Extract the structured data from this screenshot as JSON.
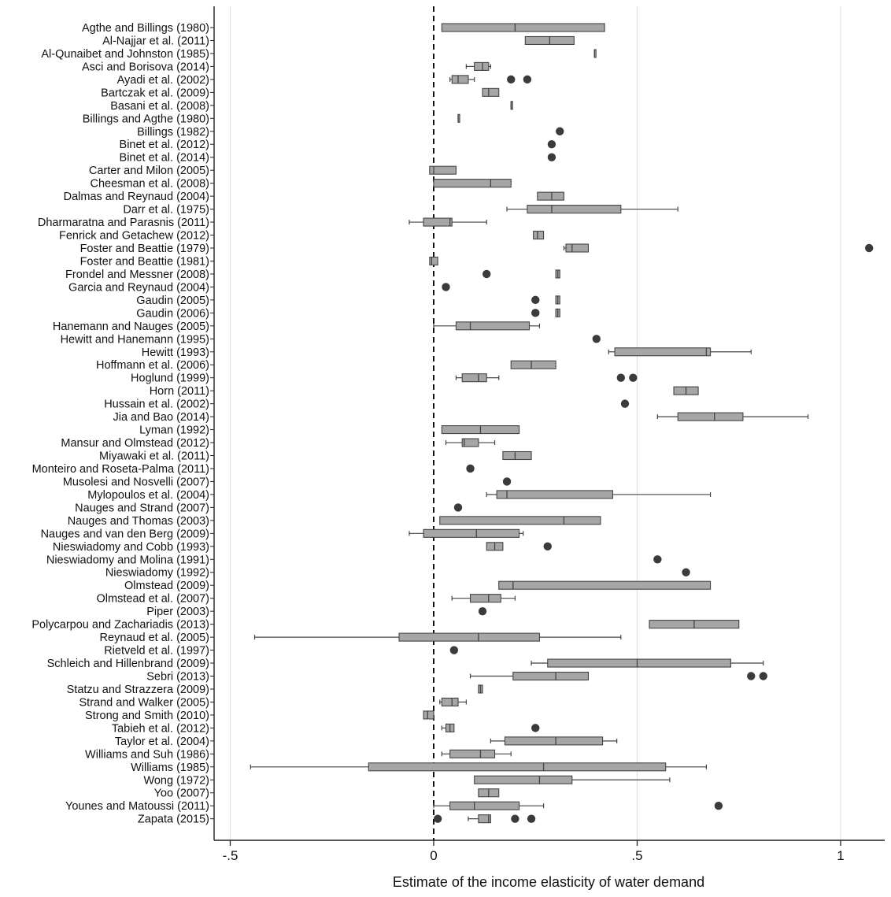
{
  "chart_data": {
    "type": "box",
    "title": "",
    "xlabel": "Estimate of the income elasticity of water demand",
    "ylabel": "",
    "xlim": [
      -0.5,
      1.1
    ],
    "xticks": [
      -0.5,
      0,
      0.5,
      1
    ],
    "xtick_labels": [
      "-.5",
      "0",
      ".5",
      "1"
    ],
    "grid": "vertical",
    "reference_line": 0,
    "colors": {
      "box": "#a6a6a6",
      "edge": "#444444",
      "outlier": "#3b3b3b",
      "grid": "#e2e2e2"
    },
    "studies": [
      {
        "name": "Agthe and Billings (1980)",
        "box": [
          0.02,
          0.2,
          0.42
        ]
      },
      {
        "name": "Al-Najjar et al. (2011)",
        "box": [
          0.225,
          0.285,
          0.345
        ]
      },
      {
        "name": "Al-Qunaibet and Johnston (1985)",
        "box": [
          0.395,
          0.395,
          0.395
        ]
      },
      {
        "name": "Asci and Borisova (2014)",
        "box": [
          0.1,
          0.12,
          0.135
        ],
        "whisker": [
          0.08,
          0.14
        ]
      },
      {
        "name": "Ayadi et al. (2002)",
        "box": [
          0.045,
          0.06,
          0.085
        ],
        "whisker": [
          0.04,
          0.1
        ],
        "outliers": [
          0.19,
          0.23
        ]
      },
      {
        "name": "Bartczak et al. (2009)",
        "box": [
          0.12,
          0.135,
          0.16
        ]
      },
      {
        "name": "Basani et al. (2008)",
        "box": [
          0.19,
          0.19,
          0.19
        ]
      },
      {
        "name": "Billings and Agthe (1980)",
        "box": [
          0.06,
          0.06,
          0.06
        ]
      },
      {
        "name": "Billings (1982)",
        "outliers": [
          0.31
        ]
      },
      {
        "name": "Binet et al. (2012)",
        "outliers": [
          0.29
        ]
      },
      {
        "name": "Binet et al. (2014)",
        "outliers": [
          0.29
        ]
      },
      {
        "name": "Carter and Milon (2005)",
        "box": [
          -0.01,
          0.0,
          0.055
        ]
      },
      {
        "name": "Cheesman et al. (2008)",
        "box": [
          0.0,
          0.14,
          0.19
        ]
      },
      {
        "name": "Dalmas and Reynaud (2004)",
        "box": [
          0.255,
          0.29,
          0.32
        ]
      },
      {
        "name": "Darr et al. (1975)",
        "box": [
          0.23,
          0.29,
          0.46
        ],
        "whisker": [
          0.18,
          0.6
        ]
      },
      {
        "name": "Dharmaratna and Parasnis (2011)",
        "box": [
          -0.025,
          0.04,
          0.045
        ],
        "whisker": [
          -0.06,
          0.13
        ]
      },
      {
        "name": "Fenrick and Getachew (2012)",
        "box": [
          0.245,
          0.255,
          0.27
        ]
      },
      {
        "name": "Foster and Beattie (1979)",
        "box": [
          0.325,
          0.34,
          0.38
        ],
        "whisker": [
          0.32,
          0.38
        ],
        "outliers": [
          1.07
        ]
      },
      {
        "name": "Foster and Beattie (1981)",
        "box": [
          -0.01,
          -0.005,
          0.01
        ]
      },
      {
        "name": "Frondel and Messner (2008)",
        "box": [
          0.3,
          0.305,
          0.31
        ],
        "outliers": [
          0.13
        ]
      },
      {
        "name": "Garcia and Reynaud (2004)",
        "outliers": [
          0.03
        ]
      },
      {
        "name": "Gaudin (2005)",
        "box": [
          0.3,
          0.305,
          0.31
        ],
        "outliers": [
          0.25
        ]
      },
      {
        "name": "Gaudin (2006)",
        "box": [
          0.3,
          0.305,
          0.31
        ],
        "outliers": [
          0.25
        ]
      },
      {
        "name": "Hanemann and Nauges (2005)",
        "box": [
          0.055,
          0.09,
          0.235
        ],
        "whisker": [
          0.0,
          0.26
        ]
      },
      {
        "name": "Hewitt and Hanemann (1995)",
        "outliers": [
          0.4
        ]
      },
      {
        "name": "Hewitt (1993)",
        "box": [
          0.445,
          0.67,
          0.68
        ],
        "whisker": [
          0.43,
          0.78
        ]
      },
      {
        "name": "Hoffmann et al. (2006)",
        "box": [
          0.19,
          0.24,
          0.3
        ]
      },
      {
        "name": "Hoglund (1999)",
        "box": [
          0.07,
          0.11,
          0.13
        ],
        "whisker": [
          0.055,
          0.16
        ],
        "outliers": [
          0.46,
          0.49
        ]
      },
      {
        "name": "Horn (2011)",
        "box": [
          0.59,
          0.62,
          0.65
        ]
      },
      {
        "name": "Hussain et al. (2002)",
        "outliers": [
          0.47
        ]
      },
      {
        "name": "Jia and Bao (2014)",
        "box": [
          0.6,
          0.69,
          0.76
        ],
        "whisker": [
          0.55,
          0.92
        ]
      },
      {
        "name": "Lyman (1992)",
        "box": [
          0.02,
          0.115,
          0.21
        ]
      },
      {
        "name": "Mansur and Olmstead (2012)",
        "box": [
          0.07,
          0.075,
          0.11
        ],
        "whisker": [
          0.03,
          0.15
        ]
      },
      {
        "name": "Miyawaki et al. (2011)",
        "box": [
          0.17,
          0.2,
          0.24
        ]
      },
      {
        "name": "Monteiro and Roseta-Palma (2011)",
        "outliers": [
          0.09
        ]
      },
      {
        "name": "Musolesi and Nosvelli (2007)",
        "outliers": [
          0.18
        ]
      },
      {
        "name": "Mylopoulos et al. (2004)",
        "box": [
          0.155,
          0.18,
          0.44
        ],
        "whisker": [
          0.13,
          0.68
        ]
      },
      {
        "name": "Nauges and Strand (2007)",
        "outliers": [
          0.06
        ]
      },
      {
        "name": "Nauges and Thomas (2003)",
        "box": [
          0.015,
          0.32,
          0.41
        ]
      },
      {
        "name": "Nauges and van den Berg (2009)",
        "box": [
          -0.025,
          0.105,
          0.21
        ],
        "whisker": [
          -0.06,
          0.22
        ]
      },
      {
        "name": "Nieswiadomy and Cobb (1993)",
        "box": [
          0.13,
          0.15,
          0.17
        ],
        "outliers": [
          0.28
        ]
      },
      {
        "name": "Nieswiadomy and Molina (1991)",
        "outliers": [
          0.55
        ]
      },
      {
        "name": "Nieswiadomy (1992)",
        "outliers": [
          0.62
        ]
      },
      {
        "name": "Olmstead (2009)",
        "box": [
          0.16,
          0.195,
          0.68
        ]
      },
      {
        "name": "Olmstead et al. (2007)",
        "box": [
          0.09,
          0.135,
          0.165
        ],
        "whisker": [
          0.045,
          0.2
        ]
      },
      {
        "name": "Piper (2003)",
        "outliers": [
          0.12
        ]
      },
      {
        "name": "Polycarpou and Zachariadis (2013)",
        "box": [
          0.53,
          0.64,
          0.75
        ]
      },
      {
        "name": "Reynaud et al. (2005)",
        "box": [
          -0.085,
          0.11,
          0.26
        ],
        "whisker": [
          -0.44,
          0.46
        ]
      },
      {
        "name": "Rietveld et al. (1997)",
        "outliers": [
          0.05
        ]
      },
      {
        "name": "Schleich and Hillenbrand (2009)",
        "box": [
          0.28,
          0.5,
          0.73
        ],
        "whisker": [
          0.24,
          0.81
        ]
      },
      {
        "name": "Sebri (2013)",
        "box": [
          0.195,
          0.3,
          0.38
        ],
        "whisker": [
          0.09,
          0.38
        ],
        "outliers": [
          0.78,
          0.81
        ]
      },
      {
        "name": "Statzu and Strazzera (2009)",
        "box": [
          0.11,
          0.115,
          0.12
        ]
      },
      {
        "name": "Strand and Walker (2005)",
        "box": [
          0.02,
          0.045,
          0.06
        ],
        "whisker": [
          0.015,
          0.08
        ]
      },
      {
        "name": "Strong and Smith (2010)",
        "box": [
          -0.025,
          -0.015,
          0.0
        ]
      },
      {
        "name": "Tabieh et al. (2012)",
        "box": [
          0.03,
          0.04,
          0.05
        ],
        "whisker": [
          0.02,
          0.05
        ],
        "outliers": [
          0.25
        ]
      },
      {
        "name": "Taylor et al. (2004)",
        "box": [
          0.175,
          0.3,
          0.415
        ],
        "whisker": [
          0.14,
          0.45
        ]
      },
      {
        "name": "Williams and Suh (1986)",
        "box": [
          0.04,
          0.115,
          0.15
        ],
        "whisker": [
          0.02,
          0.19
        ]
      },
      {
        "name": "Williams (1985)",
        "box": [
          -0.16,
          0.27,
          0.57
        ],
        "whisker": [
          -0.45,
          0.67
        ]
      },
      {
        "name": "Wong (1972)",
        "box": [
          0.1,
          0.26,
          0.34
        ],
        "whisker": [
          0.1,
          0.58
        ]
      },
      {
        "name": "Yoo (2007)",
        "box": [
          0.11,
          0.135,
          0.16
        ]
      },
      {
        "name": "Younes and Matoussi (2011)",
        "box": [
          0.04,
          0.1,
          0.21
        ],
        "whisker": [
          0.0,
          0.27
        ],
        "outliers": [
          0.7
        ]
      },
      {
        "name": "Zapata (2015)",
        "box": [
          0.11,
          0.135,
          0.14
        ],
        "whisker": [
          0.085,
          0.14
        ],
        "outliers": [
          0.01,
          0.2,
          0.24
        ]
      }
    ]
  }
}
